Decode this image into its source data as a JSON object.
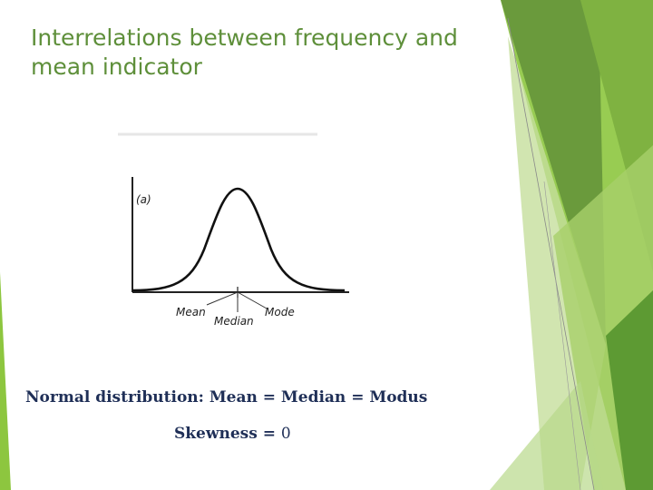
{
  "slide": {
    "title": "Interrelations between frequency and mean indicator",
    "figure": {
      "panel_label": "(a)",
      "mean_label": "Mean",
      "median_label": "Median",
      "mode_label": "Mode"
    },
    "caption": "Normal distribution: Mean = Median = Modus",
    "skewness_label": "Skewness =",
    "skewness_value": "0"
  },
  "theme": {
    "accent": "#6aa83a",
    "title_color": "#5e8f3a",
    "text_color": "#1f2f57"
  }
}
